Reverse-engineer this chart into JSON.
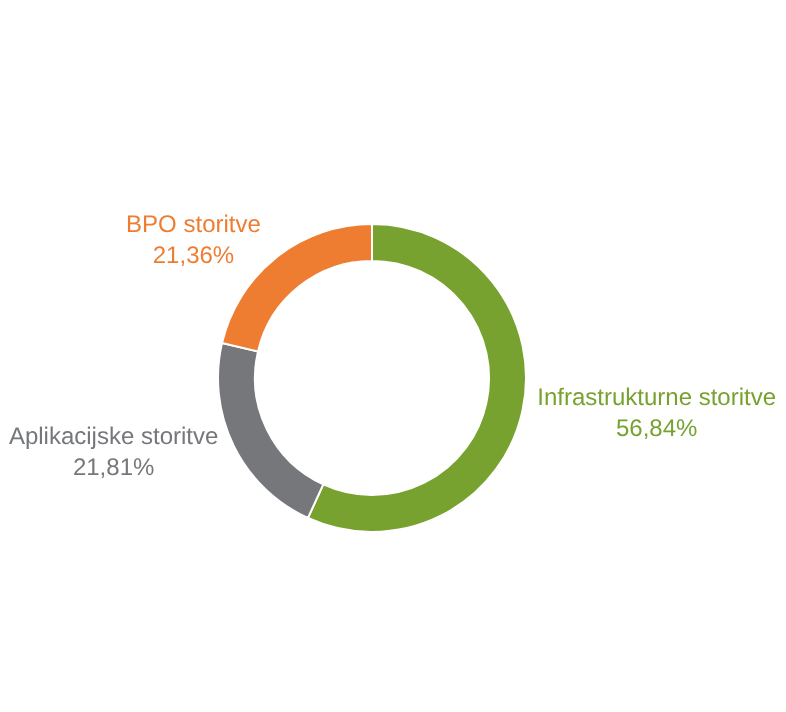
{
  "chart_data": {
    "type": "donut",
    "categories": [
      "Infrastrukturne storitve",
      "Aplikacijske storitve",
      "BPO storitve"
    ],
    "values": [
      56.84,
      21.81,
      21.36
    ],
    "value_labels": [
      "56,84%",
      "21,81%",
      "21,36%"
    ],
    "colors": [
      "#77a22f",
      "#75777a",
      "#ee7d31"
    ],
    "legend": false
  }
}
